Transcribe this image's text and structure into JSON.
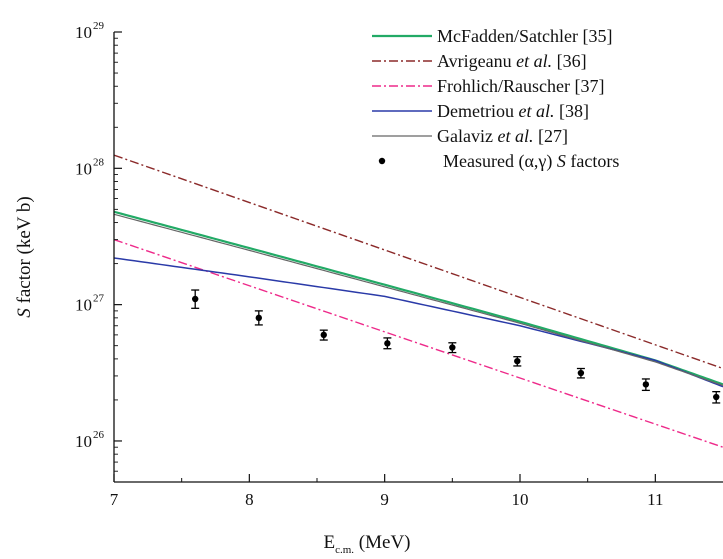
{
  "chart_data": {
    "type": "line",
    "title": "",
    "xlabel": {
      "main": "E",
      "sub": "c.m.",
      "unit": " (MeV)"
    },
    "ylabel": {
      "italic": "S",
      "rest": " factor (keV b)"
    },
    "x_ticks": [
      "7",
      "8",
      "9",
      "10",
      "11"
    ],
    "y_ticks": [
      {
        "base": "10",
        "exp": "26",
        "value": 1e+26
      },
      {
        "base": "10",
        "exp": "27",
        "value": 1e+27
      },
      {
        "base": "10",
        "exp": "28",
        "value": 1e+28
      },
      {
        "base": "10",
        "exp": "29",
        "value": 1e+29
      }
    ],
    "xlim": [
      7,
      11.5
    ],
    "ylim": [
      5e+25,
      1e+29
    ],
    "y_scale": "log",
    "legend_position": "top-right",
    "grid": false,
    "series": [
      {
        "name_parts": [
          {
            "text": "McFadden/Satchler [35]",
            "italic": false
          }
        ],
        "color": "#22aa66",
        "dash": "solid",
        "width": 2.2,
        "x": [
          7,
          8,
          9,
          10,
          11,
          11.5
        ],
        "y": [
          4.8e+27,
          2.6e+27,
          1.4e+27,
          7.5e+26,
          3.9e+26,
          2.6e+26
        ]
      },
      {
        "name_parts": [
          {
            "text": "Avrigeanu ",
            "italic": false
          },
          {
            "text": "et al.",
            "italic": true
          },
          {
            "text": " [36]",
            "italic": false
          }
        ],
        "color": "#8b2a2a",
        "dash": "dashdot",
        "width": 1.4,
        "x": [
          7,
          11.5
        ],
        "y": [
          1.25e+28,
          3.4e+26
        ]
      },
      {
        "name_parts": [
          {
            "text": "Frohlich/Rauscher [37]",
            "italic": false
          }
        ],
        "color": "#ee2a8a",
        "dash": "dashdot",
        "width": 1.4,
        "x": [
          7,
          11.5
        ],
        "y": [
          3e+27,
          9e+25
        ]
      },
      {
        "name_parts": [
          {
            "text": "Demetriou ",
            "italic": false
          },
          {
            "text": "et al.",
            "italic": true
          },
          {
            "text": " [38]",
            "italic": false
          }
        ],
        "color": "#2a3aa8",
        "dash": "solid",
        "width": 1.5,
        "x": [
          7,
          8,
          9,
          10,
          11,
          11.5
        ],
        "y": [
          2.2e+27,
          1.6e+27,
          1.15e+27,
          7e+26,
          3.9e+26,
          2.5e+26
        ]
      },
      {
        "name_parts": [
          {
            "text": "Galaviz ",
            "italic": false
          },
          {
            "text": "et al.",
            "italic": true
          },
          {
            "text": " [27]",
            "italic": false
          }
        ],
        "color": "#666666",
        "dash": "solid",
        "width": 1.2,
        "x": [
          7,
          8,
          9,
          10,
          11,
          11.5
        ],
        "y": [
          4.6e+27,
          2.5e+27,
          1.35e+27,
          7.3e+26,
          3.8e+26,
          2.55e+26
        ]
      }
    ],
    "measured": {
      "name_parts": [
        {
          "text": "Measured (α,γ) ",
          "italic": false
        },
        {
          "text": "S",
          "italic": true
        },
        {
          "text": " factors",
          "italic": false
        }
      ],
      "color": "#000000",
      "points": [
        {
          "x": 7.6,
          "y": 1.1e+27,
          "lo": 9.4e+26,
          "hi": 1.28e+27
        },
        {
          "x": 8.07,
          "y": 8e+26,
          "lo": 7.1e+26,
          "hi": 9e+26
        },
        {
          "x": 8.55,
          "y": 6e+26,
          "lo": 5.5e+26,
          "hi": 6.5e+26
        },
        {
          "x": 9.02,
          "y": 5.2e+26,
          "lo": 4.75e+26,
          "hi": 5.7e+26
        },
        {
          "x": 9.5,
          "y": 4.85e+26,
          "lo": 4.45e+26,
          "hi": 5.25e+26
        },
        {
          "x": 9.98,
          "y": 3.85e+26,
          "lo": 3.55e+26,
          "hi": 4.15e+26
        },
        {
          "x": 10.45,
          "y": 3.15e+26,
          "lo": 2.9e+26,
          "hi": 3.4e+26
        },
        {
          "x": 10.93,
          "y": 2.6e+26,
          "lo": 2.35e+26,
          "hi": 2.85e+26
        },
        {
          "x": 11.45,
          "y": 2.1e+26,
          "lo": 1.9e+26,
          "hi": 2.3e+26
        }
      ]
    }
  }
}
